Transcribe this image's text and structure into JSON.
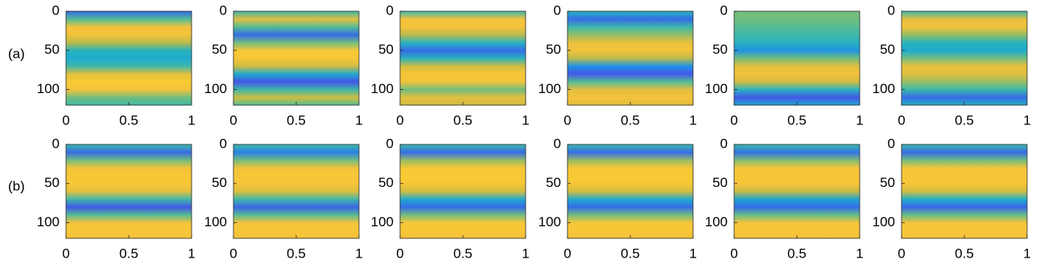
{
  "row_labels": [
    "(a)",
    "(b)"
  ],
  "chart_data": [
    {
      "type": "heatmap",
      "row": 0,
      "y": [
        0,
        10,
        20,
        30,
        40,
        50,
        60,
        70,
        80,
        90,
        100,
        110,
        120
      ],
      "values": [
        0.2,
        0.55,
        0.85,
        0.85,
        0.7,
        0.45,
        0.4,
        0.5,
        0.8,
        0.9,
        0.85,
        0.6,
        0.5
      ],
      "xlim": [
        0,
        1
      ],
      "xticks": [
        0,
        0.5,
        1
      ],
      "ylim": [
        0,
        120
      ],
      "yticks": [
        0,
        50,
        100
      ],
      "clim": [
        0,
        1
      ],
      "colormap": [
        "#3e26a8",
        "#4653e8",
        "#1f8fe6",
        "#1fb1c8",
        "#5cbf8c",
        "#c3bb45",
        "#f7c23a",
        "#f9e027"
      ]
    },
    {
      "type": "heatmap",
      "row": 0,
      "y": [
        0,
        10,
        20,
        30,
        40,
        50,
        60,
        70,
        80,
        90,
        100,
        110,
        120
      ],
      "values": [
        0.5,
        0.8,
        0.55,
        0.2,
        0.6,
        0.88,
        0.88,
        0.75,
        0.4,
        0.15,
        0.5,
        0.75,
        0.55
      ],
      "xlim": [
        0,
        1
      ],
      "xticks": [
        0,
        0.5,
        1
      ],
      "ylim": [
        0,
        120
      ],
      "yticks": [
        0,
        50,
        100
      ],
      "clim": [
        0,
        1
      ],
      "colormap": [
        "#3e26a8",
        "#4653e8",
        "#1f8fe6",
        "#1fb1c8",
        "#5cbf8c",
        "#c3bb45",
        "#f7c23a",
        "#f9e027"
      ]
    },
    {
      "type": "heatmap",
      "row": 0,
      "y": [
        0,
        10,
        20,
        30,
        40,
        50,
        60,
        70,
        80,
        90,
        100,
        110,
        120
      ],
      "values": [
        0.5,
        0.85,
        0.85,
        0.7,
        0.45,
        0.2,
        0.45,
        0.75,
        0.88,
        0.85,
        0.6,
        0.8,
        0.75
      ],
      "xlim": [
        0,
        1
      ],
      "xticks": [
        0,
        0.5,
        1
      ],
      "ylim": [
        0,
        120
      ],
      "yticks": [
        0,
        50,
        100
      ],
      "clim": [
        0,
        1
      ],
      "colormap": [
        "#3e26a8",
        "#4653e8",
        "#1f8fe6",
        "#1fb1c8",
        "#5cbf8c",
        "#c3bb45",
        "#f7c23a",
        "#f9e027"
      ]
    },
    {
      "type": "heatmap",
      "row": 0,
      "y": [
        0,
        10,
        20,
        30,
        40,
        50,
        60,
        70,
        80,
        90,
        100,
        110,
        120
      ],
      "values": [
        0.45,
        0.2,
        0.5,
        0.65,
        0.82,
        0.85,
        0.7,
        0.3,
        0.15,
        0.55,
        0.8,
        0.85,
        0.8
      ],
      "xlim": [
        0,
        1
      ],
      "xticks": [
        0,
        0.5,
        1
      ],
      "ylim": [
        0,
        120
      ],
      "yticks": [
        0,
        50,
        100
      ],
      "clim": [
        0,
        1
      ],
      "colormap": [
        "#3e26a8",
        "#4653e8",
        "#1f8fe6",
        "#1fb1c8",
        "#5cbf8c",
        "#c3bb45",
        "#f7c23a",
        "#f9e027"
      ]
    },
    {
      "type": "heatmap",
      "row": 0,
      "y": [
        0,
        10,
        20,
        30,
        40,
        50,
        60,
        70,
        80,
        90,
        100,
        110,
        120
      ],
      "values": [
        0.6,
        0.6,
        0.55,
        0.5,
        0.45,
        0.3,
        0.6,
        0.8,
        0.85,
        0.75,
        0.45,
        0.15,
        0.4
      ],
      "xlim": [
        0,
        1
      ],
      "xticks": [
        0,
        0.5,
        1
      ],
      "ylim": [
        0,
        120
      ],
      "yticks": [
        0,
        50,
        100
      ],
      "clim": [
        0,
        1
      ],
      "colormap": [
        "#3e26a8",
        "#4653e8",
        "#1f8fe6",
        "#1fb1c8",
        "#5cbf8c",
        "#c3bb45",
        "#f7c23a",
        "#f9e027"
      ]
    },
    {
      "type": "heatmap",
      "row": 0,
      "y": [
        0,
        10,
        20,
        30,
        40,
        50,
        60,
        70,
        80,
        90,
        100,
        110,
        120
      ],
      "values": [
        0.5,
        0.8,
        0.85,
        0.65,
        0.45,
        0.4,
        0.6,
        0.82,
        0.8,
        0.65,
        0.5,
        0.2,
        0.45
      ],
      "xlim": [
        0,
        1
      ],
      "xticks": [
        0,
        0.5,
        1
      ],
      "ylim": [
        0,
        120
      ],
      "yticks": [
        0,
        50,
        100
      ],
      "clim": [
        0,
        1
      ],
      "colormap": [
        "#3e26a8",
        "#4653e8",
        "#1f8fe6",
        "#1fb1c8",
        "#5cbf8c",
        "#c3bb45",
        "#f7c23a",
        "#f9e027"
      ]
    },
    {
      "type": "heatmap",
      "row": 1,
      "y": [
        0,
        10,
        20,
        30,
        40,
        50,
        60,
        70,
        80,
        90,
        100,
        110,
        120
      ],
      "values": [
        0.5,
        0.2,
        0.6,
        0.85,
        0.88,
        0.88,
        0.8,
        0.5,
        0.15,
        0.55,
        0.85,
        0.88,
        0.85
      ],
      "xlim": [
        0,
        1
      ],
      "xticks": [
        0,
        0.5,
        1
      ],
      "ylim": [
        0,
        120
      ],
      "yticks": [
        0,
        50,
        100
      ],
      "clim": [
        0,
        1
      ],
      "colormap": [
        "#3e26a8",
        "#4653e8",
        "#1f8fe6",
        "#1fb1c8",
        "#5cbf8c",
        "#c3bb45",
        "#f7c23a",
        "#f9e027"
      ]
    },
    {
      "type": "heatmap",
      "row": 1,
      "y": [
        0,
        10,
        20,
        30,
        40,
        50,
        60,
        70,
        80,
        90,
        100,
        110,
        120
      ],
      "values": [
        0.5,
        0.25,
        0.6,
        0.85,
        0.88,
        0.86,
        0.78,
        0.5,
        0.18,
        0.55,
        0.85,
        0.88,
        0.85
      ],
      "xlim": [
        0,
        1
      ],
      "xticks": [
        0,
        0.5,
        1
      ],
      "ylim": [
        0,
        120
      ],
      "yticks": [
        0,
        50,
        100
      ],
      "clim": [
        0,
        1
      ],
      "colormap": [
        "#3e26a8",
        "#4653e8",
        "#1f8fe6",
        "#1fb1c8",
        "#5cbf8c",
        "#c3bb45",
        "#f7c23a",
        "#f9e027"
      ]
    },
    {
      "type": "heatmap",
      "row": 1,
      "y": [
        0,
        10,
        20,
        30,
        40,
        50,
        60,
        70,
        80,
        90,
        100,
        110,
        120
      ],
      "values": [
        0.5,
        0.2,
        0.65,
        0.88,
        0.9,
        0.88,
        0.75,
        0.4,
        0.2,
        0.6,
        0.88,
        0.88,
        0.85
      ],
      "xlim": [
        0,
        1
      ],
      "xticks": [
        0,
        0.5,
        1
      ],
      "ylim": [
        0,
        120
      ],
      "yticks": [
        0,
        50,
        100
      ],
      "clim": [
        0,
        1
      ],
      "colormap": [
        "#3e26a8",
        "#4653e8",
        "#1f8fe6",
        "#1fb1c8",
        "#5cbf8c",
        "#c3bb45",
        "#f7c23a",
        "#f9e027"
      ]
    },
    {
      "type": "heatmap",
      "row": 1,
      "y": [
        0,
        10,
        20,
        30,
        40,
        50,
        60,
        70,
        80,
        90,
        100,
        110,
        120
      ],
      "values": [
        0.5,
        0.2,
        0.65,
        0.88,
        0.9,
        0.88,
        0.75,
        0.4,
        0.2,
        0.6,
        0.88,
        0.88,
        0.85
      ],
      "xlim": [
        0,
        1
      ],
      "xticks": [
        0,
        0.5,
        1
      ],
      "ylim": [
        0,
        120
      ],
      "yticks": [
        0,
        50,
        100
      ],
      "clim": [
        0,
        1
      ],
      "colormap": [
        "#3e26a8",
        "#4653e8",
        "#1f8fe6",
        "#1fb1c8",
        "#5cbf8c",
        "#c3bb45",
        "#f7c23a",
        "#f9e027"
      ]
    },
    {
      "type": "heatmap",
      "row": 1,
      "y": [
        0,
        10,
        20,
        30,
        40,
        50,
        60,
        70,
        80,
        90,
        100,
        110,
        120
      ],
      "values": [
        0.5,
        0.22,
        0.62,
        0.86,
        0.88,
        0.87,
        0.72,
        0.38,
        0.2,
        0.58,
        0.86,
        0.88,
        0.85
      ],
      "xlim": [
        0,
        1
      ],
      "xticks": [
        0,
        0.5,
        1
      ],
      "ylim": [
        0,
        120
      ],
      "yticks": [
        0,
        50,
        100
      ],
      "clim": [
        0,
        1
      ],
      "colormap": [
        "#3e26a8",
        "#4653e8",
        "#1f8fe6",
        "#1fb1c8",
        "#5cbf8c",
        "#c3bb45",
        "#f7c23a",
        "#f9e027"
      ]
    },
    {
      "type": "heatmap",
      "row": 1,
      "y": [
        0,
        10,
        20,
        30,
        40,
        50,
        60,
        70,
        80,
        90,
        100,
        110,
        120
      ],
      "values": [
        0.5,
        0.2,
        0.6,
        0.86,
        0.88,
        0.87,
        0.75,
        0.42,
        0.18,
        0.58,
        0.86,
        0.88,
        0.85
      ],
      "xlim": [
        0,
        1
      ],
      "xticks": [
        0,
        0.5,
        1
      ],
      "ylim": [
        0,
        120
      ],
      "yticks": [
        0,
        50,
        100
      ],
      "clim": [
        0,
        1
      ],
      "colormap": [
        "#3e26a8",
        "#4653e8",
        "#1f8fe6",
        "#1fb1c8",
        "#5cbf8c",
        "#c3bb45",
        "#f7c23a",
        "#f9e027"
      ]
    }
  ]
}
